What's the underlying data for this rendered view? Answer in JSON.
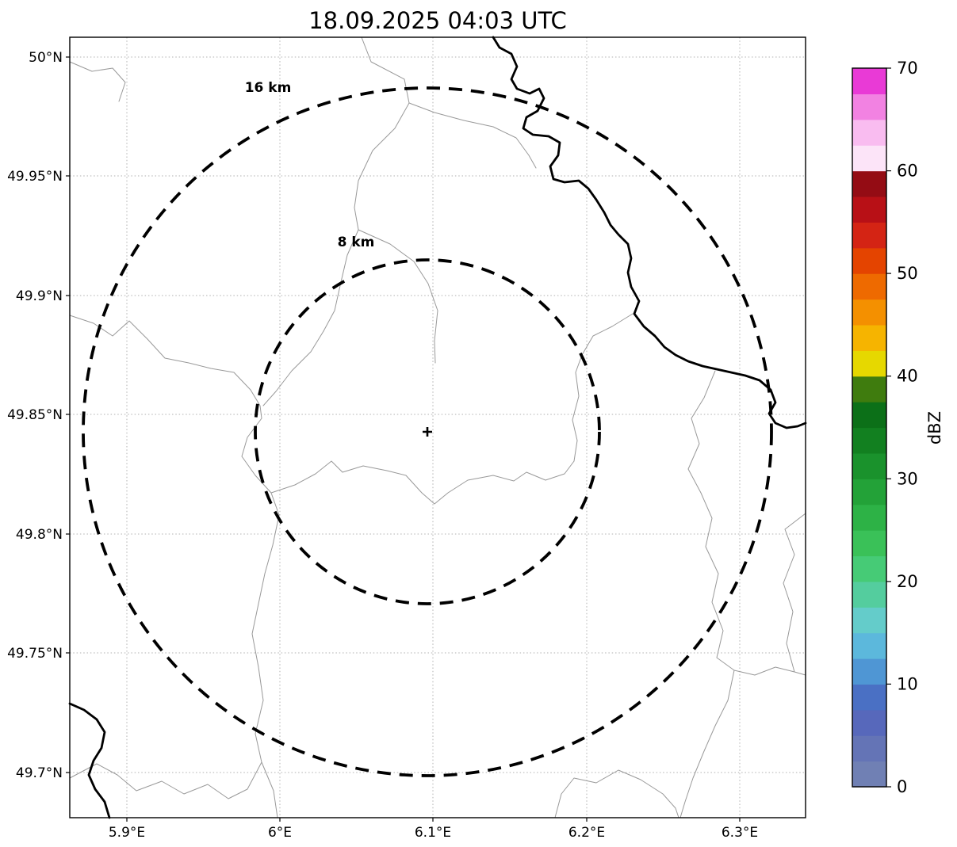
{
  "title": "18.09.2025 04:03 UTC",
  "map": {
    "y_ticks": [
      "50°N",
      "49.95°N",
      "49.9°N",
      "49.85°N",
      "49.8°N",
      "49.75°N",
      "49.7°N"
    ],
    "x_ticks": [
      "5.9°E",
      "6°E",
      "6.1°E",
      "6.2°E",
      "6.3°E"
    ],
    "ring_labels": {
      "outer": "16 km",
      "inner": "8 km"
    },
    "center_marker": "+"
  },
  "colorbar": {
    "label": "dBZ",
    "tick_labels_top_to_bottom": [
      "70",
      "60",
      "50",
      "40",
      "30",
      "20",
      "10",
      "0"
    ],
    "colors_bottom_to_top": [
      "#7080b4",
      "#6474b6",
      "#5768bb",
      "#4a70c4",
      "#4f96d4",
      "#5cb8dc",
      "#64ccca",
      "#54cd9e",
      "#46cb76",
      "#3ac158",
      "#2db246",
      "#23a238",
      "#1a922c",
      "#128020",
      "#0c7018",
      "#3f7c0e",
      "#e6d800",
      "#f6b400",
      "#f49000",
      "#ee6a00",
      "#e44400",
      "#d42414",
      "#b81016",
      "#940c14",
      "#fce4f8",
      "#f9bcf0",
      "#f282e2",
      "#e93ad6"
    ]
  },
  "chart_data": {
    "type": "map",
    "title": "18.09.2025 04:03 UTC",
    "x_axis": {
      "tick_labels": [
        "5.9°E",
        "6°E",
        "6.1°E",
        "6.2°E",
        "6.3°E"
      ]
    },
    "y_axis": {
      "tick_labels": [
        "50°N",
        "49.95°N",
        "49.9°N",
        "49.85°N",
        "49.8°N",
        "49.75°N",
        "49.7°N"
      ]
    },
    "grid": "dotted",
    "range_rings_km": [
      8,
      16
    ],
    "radar_center_approx": {
      "lon": "6.1°E",
      "lat": "49.84°N"
    },
    "colorbar": {
      "label": "dBZ",
      "min": 0,
      "max": 70,
      "tick_step": 10
    },
    "reflectivity_echoes": "none visible"
  }
}
